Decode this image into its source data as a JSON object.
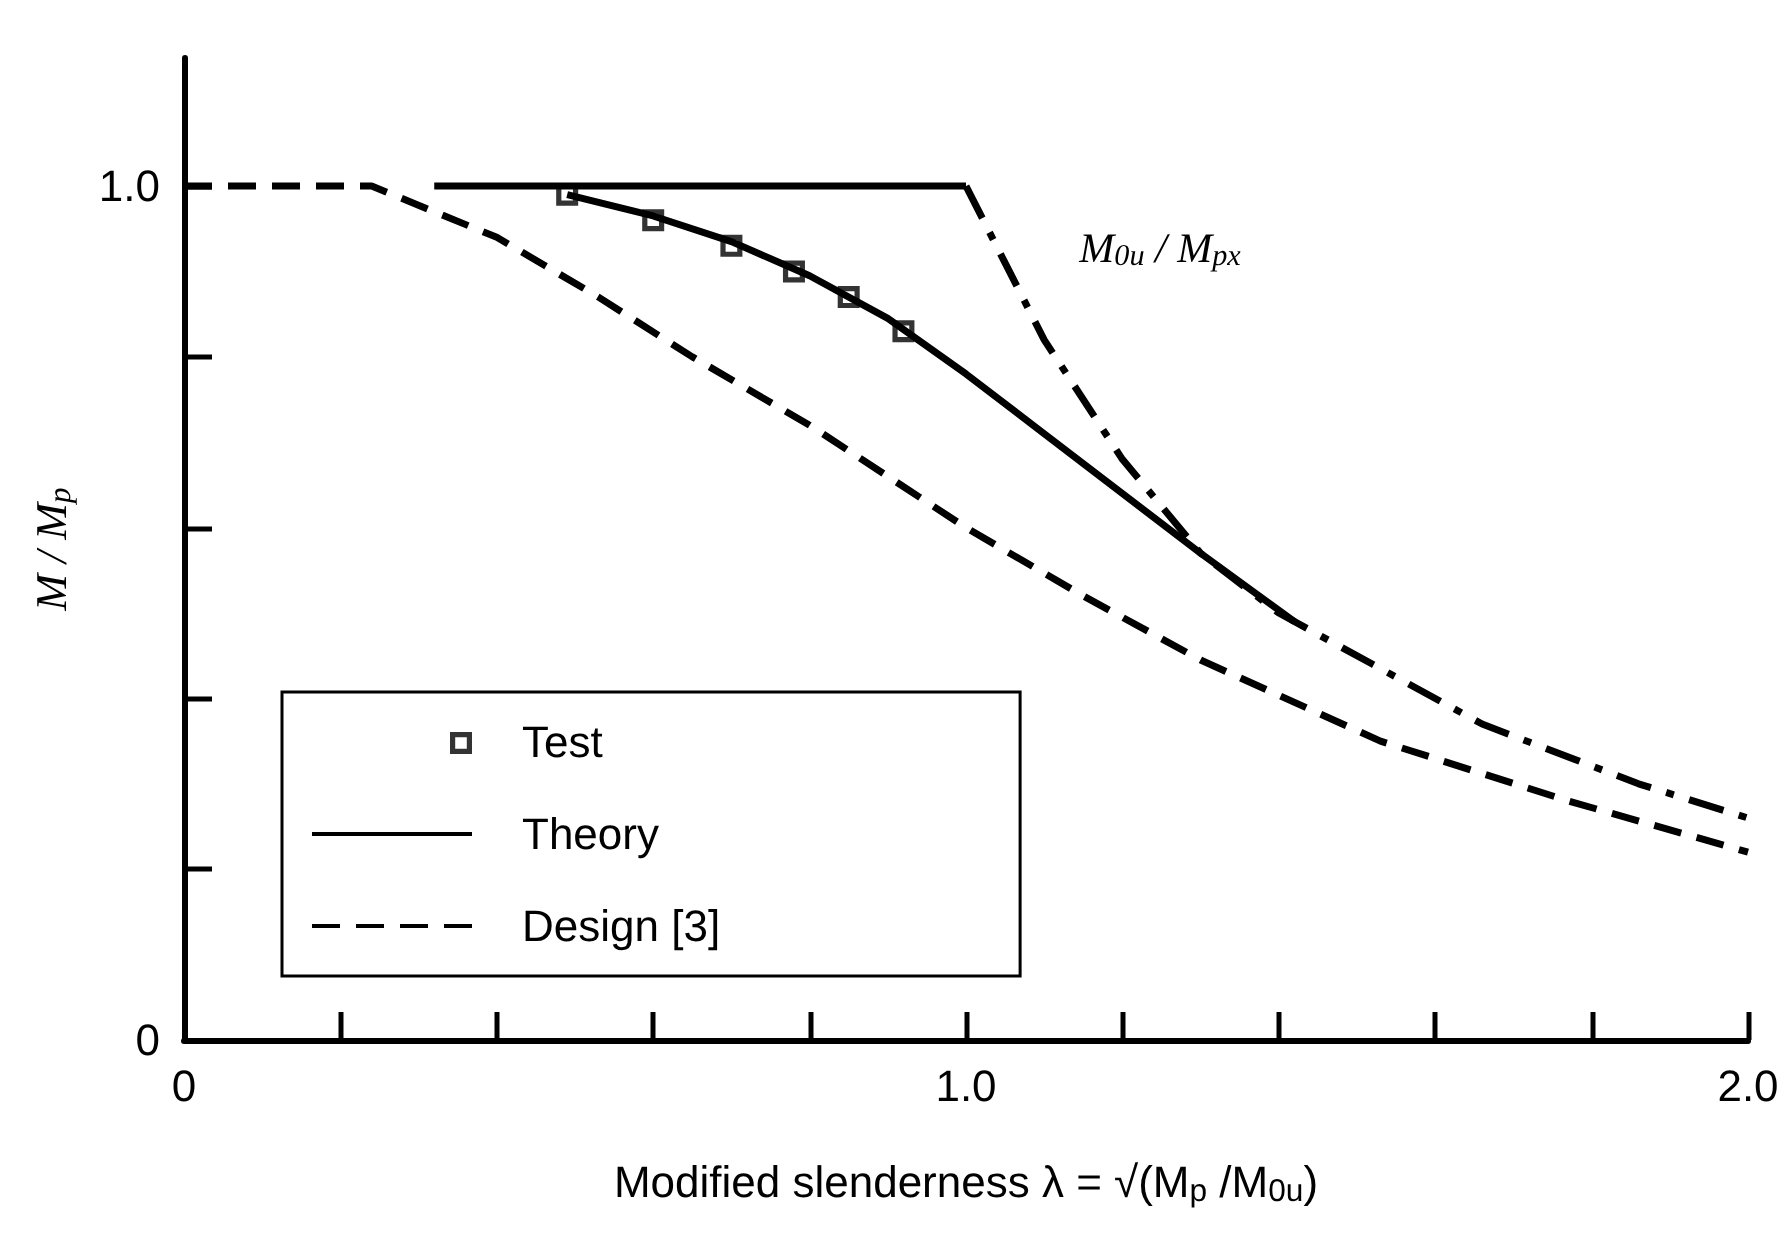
{
  "chart_data": {
    "type": "line",
    "xlabel": "Modified slenderness λ = √(M$_{p}$ /M$_{0u}$)",
    "ylabel": "M / M$_{p}$",
    "xlim": [
      0,
      2.0
    ],
    "xticks": [
      {
        "value": 0,
        "label": "0"
      },
      {
        "value": 0.2,
        "label": null
      },
      {
        "value": 0.4,
        "label": null
      },
      {
        "value": 0.6,
        "label": null
      },
      {
        "value": 0.8,
        "label": null
      },
      {
        "value": 1.0,
        "label": "1.0"
      },
      {
        "value": 1.2,
        "label": null
      },
      {
        "value": 1.4,
        "label": null
      },
      {
        "value": 1.6,
        "label": null
      },
      {
        "value": 1.8,
        "label": null
      },
      {
        "value": 2.0,
        "label": "2.0"
      }
    ],
    "ylim": [
      0,
      1.15
    ],
    "yticks": [
      {
        "value": 0,
        "label": "0"
      },
      {
        "value": 0.2,
        "label": null
      },
      {
        "value": 0.4,
        "label": null
      },
      {
        "value": 0.6,
        "label": null
      },
      {
        "value": 0.8,
        "label": null
      },
      {
        "value": 1.0,
        "label": "1.0"
      }
    ],
    "grid": false,
    "legend": "bottom left",
    "series": [
      {
        "name": "Test",
        "type": "scatter",
        "marker": "square",
        "color": "#000000",
        "x": [
          0.49,
          0.6,
          0.7,
          0.78,
          0.85,
          0.92
        ],
        "values": [
          0.99,
          0.96,
          0.93,
          0.9,
          0.87,
          0.83
        ]
      },
      {
        "name": "Theory",
        "marker": "none",
        "line_style": "solid",
        "color": "#000000",
        "x": [
          0.49,
          0.6,
          0.7,
          0.8,
          0.9,
          1.0,
          1.1,
          1.2,
          1.3,
          1.42
        ],
        "values": [
          0.99,
          0.965,
          0.935,
          0.895,
          0.845,
          0.78,
          0.71,
          0.64,
          0.57,
          0.49
        ]
      },
      {
        "name": "Design [3]",
        "marker": "none",
        "line_style": "dashed",
        "color": "#000000",
        "x": [
          0,
          0.24,
          0.4,
          0.53,
          0.65,
          0.8,
          1.0,
          1.15,
          1.3,
          1.53,
          1.77,
          2.0
        ],
        "values": [
          1.0,
          1.0,
          0.94,
          0.87,
          0.8,
          0.72,
          0.6,
          0.52,
          0.445,
          0.35,
          0.28,
          0.22
        ]
      },
      {
        "marker": "none",
        "line_style": "solid",
        "color": "#000000",
        "x": [
          0.32,
          1.0
        ],
        "values": [
          1.0,
          1.0
        ]
      },
      {
        "marker": "none",
        "line_style": "dashdot",
        "color": "#000000",
        "x": [
          1.0,
          1.1,
          1.2,
          1.3,
          1.4,
          1.52,
          1.66,
          1.86,
          2.0
        ],
        "values": [
          1.0,
          0.82,
          0.68,
          0.57,
          0.5,
          0.44,
          0.37,
          0.3,
          0.26
        ]
      }
    ],
    "annotations": [
      "M$_{0u}$ / M$_{px}$"
    ]
  }
}
